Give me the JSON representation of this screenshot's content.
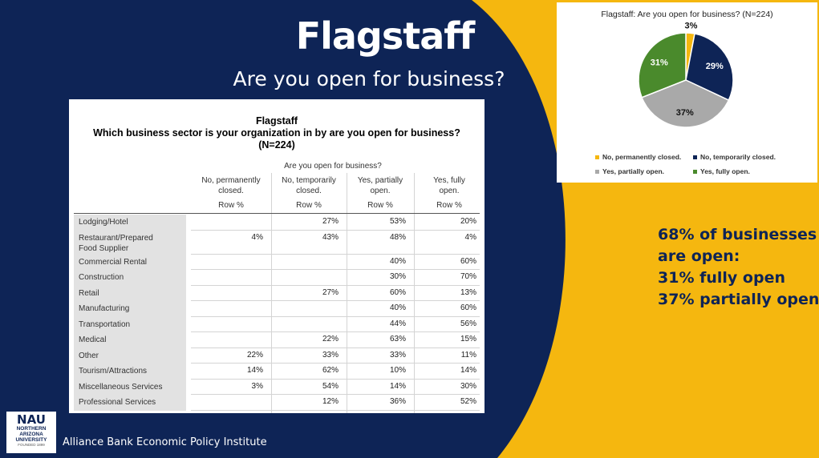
{
  "slide": {
    "title": "Flagstaff",
    "subtitle": "Are you open for business?",
    "callout": [
      "68% of businesses",
      "are open:",
      "31% fully open",
      "37% partially open"
    ],
    "footer": "Alliance Bank Economic Policy Institute",
    "logo": {
      "mark": "NAU",
      "name_lines": [
        "NORTHERN",
        "ARIZONA",
        "UNIVERSITY"
      ],
      "est": "FOUNDED 1899"
    },
    "colors": {
      "navy": "#0e2456",
      "gold": "#f5b70f"
    }
  },
  "chart_data": [
    {
      "type": "table",
      "title_lines": [
        "Flagstaff",
        "Which business sector is your organization in by are you open for business?",
        "(N=224)"
      ],
      "column_group": "Are you open for business?",
      "columns": [
        {
          "label_lines": [
            "No, permanently",
            "closed."
          ],
          "sub": "Row %"
        },
        {
          "label_lines": [
            "No, temporarily",
            "closed."
          ],
          "sub": "Row %"
        },
        {
          "label_lines": [
            "Yes, partially",
            "open."
          ],
          "sub": "Row %"
        },
        {
          "label_lines": [
            "Yes, fully",
            "open."
          ],
          "sub": "Row %"
        }
      ],
      "rows": [
        {
          "label_lines": [
            "Lodging/Hotel"
          ],
          "values": [
            "",
            "27%",
            "53%",
            "20%"
          ]
        },
        {
          "label_lines": [
            "Restaurant/Prepared",
            "Food Supplier"
          ],
          "values": [
            "4%",
            "43%",
            "48%",
            "4%"
          ]
        },
        {
          "label_lines": [
            "Commercial Rental"
          ],
          "values": [
            "",
            "",
            "40%",
            "60%"
          ]
        },
        {
          "label_lines": [
            "Construction"
          ],
          "values": [
            "",
            "",
            "30%",
            "70%"
          ]
        },
        {
          "label_lines": [
            "Retail"
          ],
          "values": [
            "",
            "27%",
            "60%",
            "13%"
          ]
        },
        {
          "label_lines": [
            "Manufacturing"
          ],
          "values": [
            "",
            "",
            "40%",
            "60%"
          ]
        },
        {
          "label_lines": [
            "Transportation"
          ],
          "values": [
            "",
            "",
            "44%",
            "56%"
          ]
        },
        {
          "label_lines": [
            "Medical"
          ],
          "values": [
            "",
            "22%",
            "63%",
            "15%"
          ]
        },
        {
          "label_lines": [
            "Other"
          ],
          "values": [
            "22%",
            "33%",
            "33%",
            "11%"
          ]
        },
        {
          "label_lines": [
            "Tourism/Attractions"
          ],
          "values": [
            "14%",
            "62%",
            "10%",
            "14%"
          ]
        },
        {
          "label_lines": [
            "Miscellaneous Services"
          ],
          "values": [
            "3%",
            "54%",
            "14%",
            "30%"
          ]
        },
        {
          "label_lines": [
            "Professional Services"
          ],
          "values": [
            "",
            "12%",
            "36%",
            "52%"
          ]
        }
      ]
    },
    {
      "type": "pie",
      "title": "Flagstaff: Are you open for business? (N=224)",
      "slices": [
        {
          "label": "No, permanently closed.",
          "value": 3,
          "display": "3%",
          "color": "#f5b70f"
        },
        {
          "label": "No, temporarily closed.",
          "value": 29,
          "display": "29%",
          "color": "#0e2456"
        },
        {
          "label": "Yes, partially open.",
          "value": 37,
          "display": "37%",
          "color": "#a9a9a9"
        },
        {
          "label": "Yes, fully open.",
          "value": 31,
          "display": "31%",
          "color": "#4a8a2c"
        }
      ],
      "legend_position": "bottom"
    }
  ]
}
